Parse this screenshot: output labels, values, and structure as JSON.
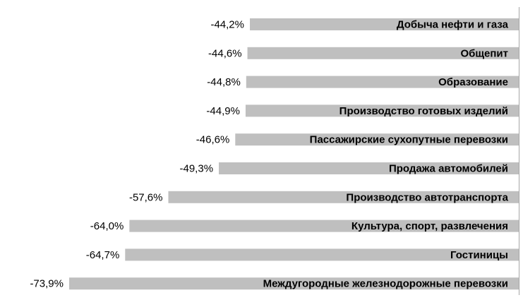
{
  "chart_data": {
    "type": "bar",
    "orientation": "horizontal",
    "title": "",
    "xlabel": "",
    "ylabel": "",
    "categories": [
      "Добыча нефти и газа",
      "Общепит",
      "Образование",
      "Производство готовых изделий",
      "Пассажирские сухопутные перевозки",
      "Продажа автомобилей",
      "Производство автотранспорта",
      "Культура, спорт, развлечения",
      "Гостиницы",
      "Междугородные железнодорожные перевозки"
    ],
    "values": [
      -44.2,
      -44.6,
      -44.8,
      -44.9,
      -46.6,
      -49.3,
      -57.6,
      -64.0,
      -64.7,
      -73.9
    ],
    "value_labels": [
      "-44,2%",
      "-44,6%",
      "-44,8%",
      "-44,9%",
      "-46,6%",
      "-49,3%",
      "-57,6%",
      "-64,0%",
      "-64,7%",
      "-73,9%"
    ],
    "unit": "%",
    "xlim": [
      -80,
      0
    ],
    "grid": false,
    "legend": "none",
    "bar_color": "#bfbfbf"
  }
}
